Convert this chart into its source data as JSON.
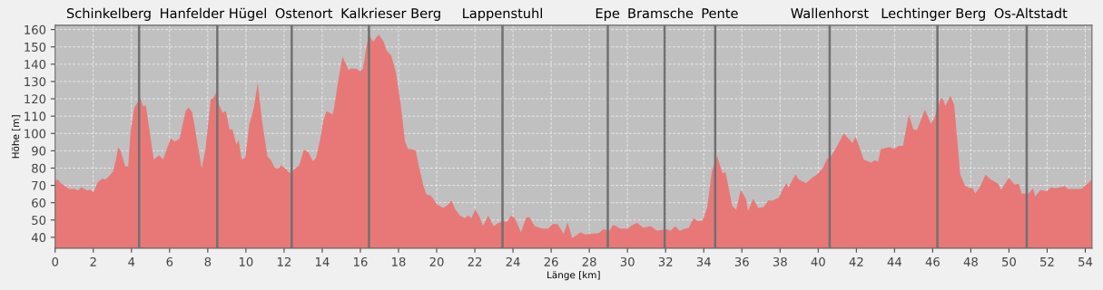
{
  "chart_data": {
    "type": "area",
    "xlabel": "Länge [km]",
    "ylabel": "Höhe [m]",
    "x": [
      0,
      0.14,
      0.33,
      0.73,
      1.05,
      1.2,
      1.37,
      1.68,
      1.84,
      2,
      2.24,
      2.48,
      2.63,
      2.8,
      3.03,
      3.19,
      3.3,
      3.43,
      3.67,
      3.83,
      3.95,
      4.14,
      4.46,
      4.62,
      4.75,
      5.17,
      5.46,
      5.65,
      6.05,
      6.29,
      6.52,
      6.84,
      7,
      7.19,
      7.68,
      7.87,
      8.16,
      8.27,
      8.44,
      8.59,
      8.79,
      8.95,
      9.14,
      9.3,
      9.5,
      9.62,
      9.78,
      9.97,
      10.17,
      10.41,
      10.62,
      10.86,
      11.13,
      11.29,
      11.52,
      11.76,
      11.84,
      12.08,
      12.24,
      12.4,
      12.56,
      12.79,
      13.03,
      13.27,
      13.51,
      13.67,
      13.9,
      14.06,
      14.22,
      14.38,
      14.54,
      14.62,
      14.83,
      15.06,
      15.25,
      15.38,
      15.49,
      15.81,
      15.97,
      16.13,
      16.32,
      16.44,
      16.68,
      16.84,
      16.98,
      17.22,
      17.38,
      17.62,
      17.86,
      18.1,
      18.34,
      18.5,
      18.66,
      18.9,
      19.06,
      19.3,
      19.46,
      19.7,
      20.02,
      20.34,
      20.58,
      20.78,
      20.98,
      21.22,
      21.46,
      21.66,
      21.82,
      22.02,
      22.26,
      22.42,
      22.7,
      22.98,
      23.22,
      23.49,
      23.7,
      23.89,
      24.1,
      24.42,
      24.69,
      24.86,
      25.14,
      25.54,
      25.86,
      26.05,
      26.34,
      26.66,
      26.86,
      27.1,
      27.3,
      27.54,
      27.78,
      28.1,
      28.5,
      28.74,
      29.06,
      29.25,
      29.62,
      30.02,
      30.21,
      30.5,
      30.82,
      31.22,
      31.54,
      32.06,
      32.26,
      32.5,
      32.74,
      32.93,
      33.22,
      33.46,
      33.7,
      33.94,
      34.18,
      34.42,
      34.7,
      34.98,
      35.14,
      35.5,
      35.7,
      35.94,
      36.22,
      36.32,
      36.59,
      36.87,
      37.14,
      37.38,
      37.62,
      37.93,
      38.09,
      38.33,
      38.44,
      38.81,
      38.97,
      39.36,
      39.68,
      39.92,
      40.23,
      40.44,
      40.71,
      41.03,
      41.34,
      41.79,
      41.95,
      42.14,
      42.38,
      42.78,
      42.96,
      43.14,
      43.28,
      43.72,
      43.99,
      44.2,
      44.44,
      44.75,
      44.99,
      45.18,
      45.59,
      45.91,
      46.1,
      46.42,
      46.53,
      46.66,
      46.93,
      47.13,
      47.45,
      47.69,
      47.93,
      48.08,
      48.24,
      48.48,
      48.77,
      49.04,
      49.43,
      49.59,
      49.99,
      50.3,
      50.51,
      50.67,
      51.02,
      51.26,
      51.38,
      51.65,
      51.97,
      52.21,
      52.44,
      52.92,
      53.08,
      53.79,
      54.11,
      54.35
    ],
    "values": [
      72.7,
      73.5,
      71,
      68,
      68,
      67,
      69,
      67,
      67.5,
      66,
      72,
      74,
      73.5,
      75,
      78,
      85,
      92,
      90,
      81,
      81,
      100.6,
      114.6,
      120.7,
      115.5,
      116.3,
      85,
      87.5,
      85,
      97,
      95.4,
      97,
      113,
      115,
      112,
      80,
      90,
      120,
      120,
      123.7,
      116.3,
      112,
      113,
      102.4,
      102.4,
      93.6,
      96.2,
      85,
      86,
      105,
      114.6,
      129,
      106,
      86.6,
      85,
      80,
      80,
      81.7,
      79.7,
      77.6,
      77,
      79.7,
      81.4,
      90.6,
      89.3,
      84,
      85.8,
      97,
      107.6,
      112.8,
      112,
      111,
      114.6,
      130,
      144.3,
      140,
      136.4,
      137.6,
      137.3,
      136,
      137.3,
      150.4,
      156.9,
      153,
      155.6,
      156.9,
      153,
      147.8,
      145,
      135.5,
      118,
      95.4,
      91,
      91,
      90,
      81.4,
      70,
      64.8,
      64,
      59,
      57,
      58.7,
      61.3,
      56,
      52.6,
      51,
      52.6,
      51,
      56,
      51.7,
      46.5,
      52.6,
      46.5,
      48.2,
      49.4,
      49,
      52.6,
      51,
      43,
      51.4,
      51.7,
      46.5,
      45,
      45,
      47.7,
      47.7,
      42,
      48.7,
      39.8,
      41,
      43,
      41.6,
      42,
      42.4,
      44.7,
      43.9,
      47.3,
      45,
      45,
      46.8,
      48.5,
      45.6,
      46.5,
      43.9,
      44.7,
      43.9,
      46.5,
      43.9,
      44.7,
      45.6,
      51,
      49.3,
      49.8,
      57,
      78,
      87,
      77,
      77.6,
      58,
      56,
      67.4,
      62,
      55.2,
      62.2,
      57,
      57.5,
      61.3,
      61.3,
      63,
      66.6,
      71.3,
      68.8,
      76.5,
      73.5,
      71.3,
      74.4,
      76.2,
      79.7,
      84.9,
      87.5,
      93.6,
      100,
      94.5,
      98,
      92.8,
      84.9,
      83.1,
      84.5,
      83.7,
      91,
      92.2,
      91,
      92.8,
      92.8,
      111,
      102.4,
      102,
      113.7,
      105.5,
      109.3,
      120.2,
      120.2,
      115.8,
      121.9,
      116.3,
      76.2,
      70,
      68.3,
      68.6,
      65.3,
      69.2,
      76.2,
      73.5,
      70.9,
      67.4,
      74.4,
      70.4,
      70.9,
      65.2,
      65.3,
      68.3,
      63.6,
      67.4,
      66.6,
      68.8,
      68.3,
      69.5,
      68,
      68,
      70.9,
      73.5
    ],
    "color": "#e87878",
    "xlim": [
      0,
      54.35
    ],
    "ylim": [
      33.7,
      162.5
    ],
    "xticks": [
      0,
      2,
      4,
      6,
      8,
      10,
      12,
      14,
      16,
      18,
      20,
      22,
      24,
      26,
      28,
      30,
      32,
      34,
      36,
      38,
      40,
      42,
      44,
      46,
      48,
      50,
      52,
      54
    ],
    "yticks": [
      40,
      50,
      60,
      70,
      80,
      90,
      100,
      110,
      120,
      130,
      140,
      150,
      160
    ],
    "grid": true,
    "ref_lines": [
      {
        "axis": "x",
        "value": 4.4,
        "label": "Schinkelberg",
        "color": "#707070"
      },
      {
        "axis": "x",
        "value": 8.5,
        "label": "Hanfelder Hügel",
        "color": "#707070"
      },
      {
        "axis": "x",
        "value": 12.4,
        "label": "Ostenort",
        "color": "#707070"
      },
      {
        "axis": "x",
        "value": 16.45,
        "label": "Kalkrieser Berg",
        "color": "#707070"
      },
      {
        "axis": "x",
        "value": 23.45,
        "label": "Lappenstuhl",
        "color": "#707070"
      },
      {
        "axis": "x",
        "value": 28.97,
        "label": "Epe",
        "color": "#707070"
      },
      {
        "axis": "x",
        "value": 31.95,
        "label": "Bramsche",
        "color": "#707070"
      },
      {
        "axis": "x",
        "value": 34.6,
        "label": "Pente",
        "color": "#707070"
      },
      {
        "axis": "x",
        "value": 40.6,
        "label": "Wallenhorst",
        "color": "#707070"
      },
      {
        "axis": "x",
        "value": 46.25,
        "label": "Lechtinger Berg",
        "color": "#707070"
      },
      {
        "axis": "x",
        "value": 50.93,
        "label": "Os-Altstadt",
        "color": "#707070"
      }
    ]
  }
}
